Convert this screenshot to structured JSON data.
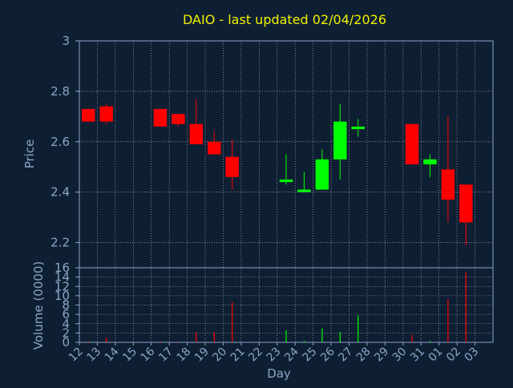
{
  "title": "DAIO - last updated 02/04/2026",
  "colors": {
    "background": "#0f1f33",
    "title": "#f0f000",
    "axis_text": "#8aa6c8",
    "grid": "#c8c8c8",
    "up": "#00ff00",
    "down": "#ff0000"
  },
  "chart_data": [
    {
      "type": "candlestick",
      "ylabel": "Price",
      "ylim": [
        2.1,
        3.0
      ],
      "yticks": [
        "3",
        "2.8",
        "2.6",
        "2.4",
        "2.2"
      ],
      "ytick_values": [
        3.0,
        2.8,
        2.6,
        2.4,
        2.2
      ],
      "grid": true,
      "x_categories": [
        "12",
        "13",
        "14",
        "15",
        "16",
        "17",
        "18",
        "19",
        "20",
        "21",
        "22",
        "23",
        "24",
        "25",
        "26",
        "27",
        "28",
        "29",
        "30",
        "31",
        "01",
        "02",
        "03"
      ],
      "candles": [
        {
          "day": "12",
          "open": 2.73,
          "close": 2.68,
          "high": 2.73,
          "low": 2.68
        },
        {
          "day": "13",
          "open": 2.74,
          "close": 2.68,
          "high": 2.75,
          "low": 2.67
        },
        {
          "day": "16",
          "open": 2.73,
          "close": 2.66,
          "high": 2.73,
          "low": 2.66
        },
        {
          "day": "17",
          "open": 2.71,
          "close": 2.67,
          "high": 2.71,
          "low": 2.66
        },
        {
          "day": "18",
          "open": 2.67,
          "close": 2.59,
          "high": 2.77,
          "low": 2.59
        },
        {
          "day": "19",
          "open": 2.6,
          "close": 2.55,
          "high": 2.64,
          "low": 2.55
        },
        {
          "day": "20",
          "open": 2.54,
          "close": 2.46,
          "high": 2.61,
          "low": 2.41
        },
        {
          "day": "23",
          "open": 2.44,
          "close": 2.45,
          "high": 2.55,
          "low": 2.43
        },
        {
          "day": "24",
          "open": 2.4,
          "close": 2.41,
          "high": 2.48,
          "low": 2.4
        },
        {
          "day": "25",
          "open": 2.41,
          "close": 2.53,
          "high": 2.57,
          "low": 2.41
        },
        {
          "day": "26",
          "open": 2.53,
          "close": 2.68,
          "high": 2.75,
          "low": 2.45
        },
        {
          "day": "27",
          "open": 2.65,
          "close": 2.66,
          "high": 2.69,
          "low": 2.62
        },
        {
          "day": "30",
          "open": 2.67,
          "close": 2.51,
          "high": 2.67,
          "low": 2.51
        },
        {
          "day": "31",
          "open": 2.51,
          "close": 2.53,
          "high": 2.55,
          "low": 2.46
        },
        {
          "day": "01",
          "open": 2.49,
          "close": 2.37,
          "high": 2.7,
          "low": 2.28
        },
        {
          "day": "02",
          "open": 2.43,
          "close": 2.28,
          "high": 2.43,
          "low": 2.19
        }
      ]
    },
    {
      "type": "bar",
      "ylabel": "Volume (0000)",
      "xlabel": "Day",
      "ylim": [
        0,
        16
      ],
      "yticks": [
        "16",
        "14",
        "12",
        "10",
        "8",
        "6",
        "4",
        "2",
        "0"
      ],
      "ytick_values": [
        16,
        14,
        12,
        10,
        8,
        6,
        4,
        2,
        0
      ],
      "grid": true,
      "categories": [
        "12",
        "13",
        "14",
        "15",
        "16",
        "17",
        "18",
        "19",
        "20",
        "21",
        "22",
        "23",
        "24",
        "25",
        "26",
        "27",
        "28",
        "29",
        "30",
        "31",
        "01",
        "02",
        "03"
      ],
      "bars": [
        {
          "day": "12",
          "value": 0.3,
          "dir": "down"
        },
        {
          "day": "13",
          "value": 1.0,
          "dir": "down"
        },
        {
          "day": "16",
          "value": 0.3,
          "dir": "down"
        },
        {
          "day": "17",
          "value": 0.2,
          "dir": "down"
        },
        {
          "day": "18",
          "value": 2.2,
          "dir": "down"
        },
        {
          "day": "19",
          "value": 2.2,
          "dir": "down"
        },
        {
          "day": "20",
          "value": 8.6,
          "dir": "down"
        },
        {
          "day": "23",
          "value": 2.6,
          "dir": "up"
        },
        {
          "day": "24",
          "value": 0.3,
          "dir": "up"
        },
        {
          "day": "25",
          "value": 3.0,
          "dir": "up"
        },
        {
          "day": "26",
          "value": 2.2,
          "dir": "up"
        },
        {
          "day": "27",
          "value": 5.8,
          "dir": "up"
        },
        {
          "day": "30",
          "value": 1.6,
          "dir": "down"
        },
        {
          "day": "31",
          "value": 0.3,
          "dir": "up"
        },
        {
          "day": "01",
          "value": 9.3,
          "dir": "down"
        },
        {
          "day": "02",
          "value": 15.0,
          "dir": "down"
        }
      ]
    }
  ]
}
